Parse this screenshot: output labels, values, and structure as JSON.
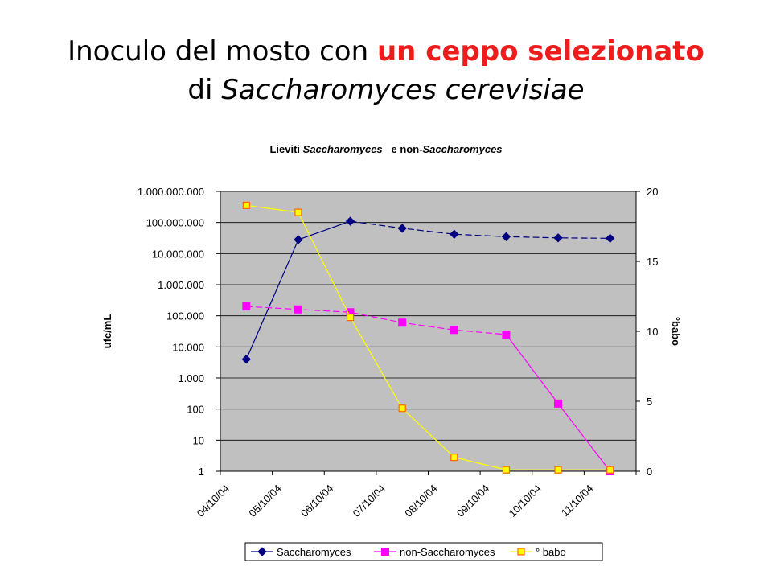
{
  "slide": {
    "title_prefix": "Inoculo del mosto con ",
    "title_highlight": "un ceppo selezionato",
    "title_line2_prefix": "di ",
    "title_line2_italic": "Saccharomyces cerevisiae",
    "highlight_color": "#ee1c1c"
  },
  "chart_data": {
    "type": "line",
    "title_parts": [
      {
        "text": "Lieviti ",
        "italic": false
      },
      {
        "text": "Saccharomyces",
        "italic": true
      },
      {
        "text": "   e non-",
        "italic": false
      },
      {
        "text": "Saccharomyces",
        "italic": true
      }
    ],
    "categories": [
      "04/10/04",
      "05/10/04",
      "06/10/04",
      "07/10/04",
      "08/10/04",
      "09/10/04",
      "10/10/04",
      "11/10/04"
    ],
    "ylabel": "ufc/mL",
    "y2label": "°babo",
    "y_scale": "log",
    "ylim": [
      1,
      1000000000
    ],
    "y_ticks": [
      1,
      10,
      100,
      1000,
      10000,
      100000,
      1000000,
      10000000,
      100000000,
      1000000000
    ],
    "y_tick_labels": [
      "1",
      "10",
      "100",
      "1.000",
      "10.000",
      "100.000",
      "1.000.000",
      "10.000.000",
      "100.000.000",
      "1.000.000.000"
    ],
    "y2lim": [
      0,
      20
    ],
    "y2_ticks": [
      0,
      5,
      10,
      15,
      20
    ],
    "y2_tick_labels": [
      "0",
      "5",
      "10",
      "15",
      "20"
    ],
    "plot_background": "#c0c0c0",
    "grid": true,
    "legend_position": "bottom",
    "series": [
      {
        "name": "Saccharomyces",
        "axis": "left",
        "color": "#000080",
        "marker": "diamond",
        "dash": "solid-then-dashed",
        "values": [
          4000,
          28000000,
          110000000,
          65000000,
          42000000,
          35000000,
          32000000,
          31000000
        ]
      },
      {
        "name": "non-Saccharomyces",
        "axis": "left",
        "color": "#ff00ff",
        "marker": "square",
        "dash": "dashed",
        "values": [
          200000,
          160000,
          130000,
          60000,
          35000,
          25000,
          150,
          1
        ]
      },
      {
        "name": "° babo",
        "axis": "right",
        "color": "#ffff00",
        "marker": "square-outlined",
        "marker_fill": "#ffff00",
        "marker_edge": "#ff6600",
        "values": [
          19.0,
          18.5,
          11.0,
          4.5,
          1.0,
          0.1,
          0.1,
          0.1
        ]
      }
    ]
  }
}
